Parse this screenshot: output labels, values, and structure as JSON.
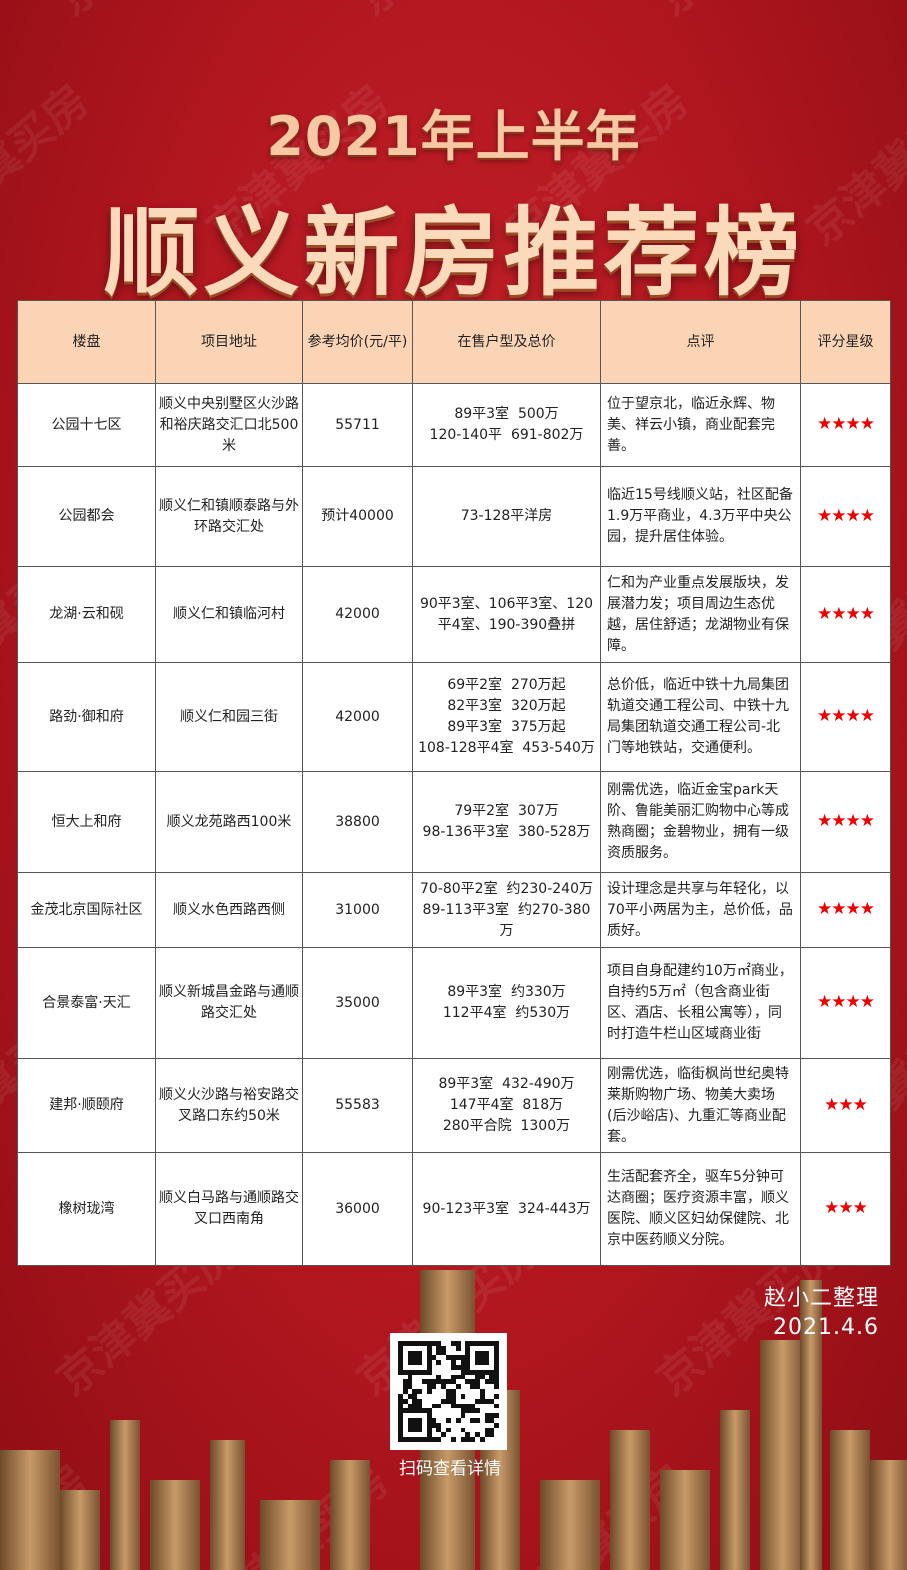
{
  "watermark": "京津冀买房",
  "title_line1": "2021年上半年",
  "title_line2": "顺义新房推荐榜",
  "table": {
    "headers": [
      "楼盘",
      "项目地址",
      "参考均价(元/平)",
      "在售户型及总价",
      "点评",
      "评分星级"
    ],
    "rows": [
      {
        "name": "公园十七区",
        "address": "顺义中央别墅区火沙路和裕庆路交汇口北500米",
        "price": "55711",
        "units": [
          "89平3室  500万",
          "120-140平  691-802万"
        ],
        "comment": "位于望京北，临近永辉、物美、祥云小镇，商业配套完善。",
        "stars": 4
      },
      {
        "name": "公园都会",
        "address": "顺义仁和镇顺泰路与外环路交汇处",
        "price": "预计40000",
        "units": [
          "73-128平洋房"
        ],
        "comment": "临近15号线顺义站，社区配备1.9万平商业，4.3万平中央公园，提升居住体验。",
        "stars": 4
      },
      {
        "name": "龙湖·云和砚",
        "address": "顺义仁和镇临河村",
        "price": "42000",
        "units": [
          "90平3室、106平3室、120平4室、190-390叠拼"
        ],
        "comment": "仁和为产业重点发展版块，发展潜力发；项目周边生态优越，居住舒适；龙湖物业有保障。",
        "stars": 4
      },
      {
        "name": "路劲·御和府",
        "address": "顺义仁和园三街",
        "price": "42000",
        "units": [
          "69平2室  270万起",
          "82平3室  320万起",
          "89平3室  375万起",
          "108-128平4室  453-540万"
        ],
        "comment": "总价低，临近中铁十九局集团轨道交通工程公司、中铁十九局集团轨道交通工程公司-北门等地铁站，交通便利。",
        "stars": 4
      },
      {
        "name": "恒大上和府",
        "address": "顺义龙苑路西100米",
        "price": "38800",
        "units": [
          "79平2室  307万",
          "98-136平3室  380-528万"
        ],
        "comment": "刚需优选，临近金宝park天阶、鲁能美丽汇购物中心等成熟商圈；金碧物业，拥有一级资质服务。",
        "stars": 4
      },
      {
        "name": "金茂北京国际社区",
        "address": "顺义水色西路西侧",
        "price": "31000",
        "units": [
          "70-80平2室  约230-240万",
          "89-113平3室  约270-380万"
        ],
        "comment": "设计理念是共享与年轻化，以70平小两居为主，总价低，品质好。",
        "stars": 4
      },
      {
        "name": "合景泰富·天汇",
        "address": "顺义新城昌金路与通顺路交汇处",
        "price": "35000",
        "units": [
          "89平3室  约330万",
          "112平4室  约530万"
        ],
        "comment": "项目自身配建约10万㎡商业，自持约5万㎡（包含商业街区、酒店、长租公寓等），同时打造牛栏山区域商业街",
        "stars": 4
      },
      {
        "name": "建邦·顺颐府",
        "address": "顺义火沙路与裕安路交叉路口东约50米",
        "price": "55583",
        "units": [
          "89平3室  432-490万",
          "147平4室  818万",
          "280平合院  1300万"
        ],
        "comment": "刚需优选，临街枫尚世纪奥特莱斯购物广场、物美大卖场(后沙峪店)、九重汇等商业配套。",
        "stars": 3
      },
      {
        "name": "橡树珑湾",
        "address": "顺义白马路与通顺路交叉口西南角",
        "price": "36000",
        "units": [
          "90-123平3室  324-443万"
        ],
        "comment": "生活配套齐全，驱车5分钟可达商圈；医疗资源丰富，顺义医院、顺义区妇幼保健院、北京中医药顺义分院。",
        "stars": 3
      }
    ]
  },
  "credit": {
    "author": "赵小二整理",
    "date": "2021.4.6"
  },
  "qr_caption": "扫码查看详情",
  "colors": {
    "background": "#b0161e",
    "header": "#fbd4b6",
    "star": "#ee0000",
    "title": "#fbd9bb"
  }
}
